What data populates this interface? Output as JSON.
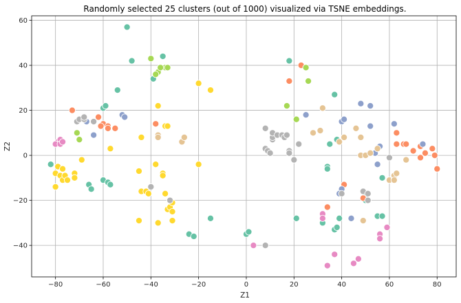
{
  "chart_data": {
    "type": "scatter",
    "title": "Randomly selected 25 clusters (out of 1000) visualized via TSNE embeddings.",
    "xlabel": "Z1",
    "ylabel": "Z2",
    "xlim": [
      -90,
      88
    ],
    "ylim": [
      -54,
      62
    ],
    "xticks": [
      -80,
      -60,
      -40,
      -20,
      0,
      20,
      40,
      60,
      80
    ],
    "yticks": [
      -40,
      -20,
      0,
      20,
      40,
      60
    ],
    "grid": true,
    "marker_edge_color": "#ffffff",
    "series": [
      {
        "color": "#66c2a5",
        "points": [
          [
            -50,
            57
          ],
          [
            -48,
            42
          ],
          [
            -35,
            44
          ],
          [
            -39,
            34
          ],
          [
            -54,
            29
          ],
          [
            -60,
            21
          ],
          [
            -59,
            22
          ],
          [
            -82,
            -4
          ],
          [
            -66,
            -13
          ],
          [
            -65,
            -15
          ],
          [
            -60,
            -11
          ],
          [
            -58,
            -12
          ],
          [
            -57,
            -13
          ],
          [
            -15,
            -28
          ],
          [
            -24,
            -35
          ],
          [
            -22,
            -36
          ],
          [
            0,
            -35
          ],
          [
            1,
            -34
          ],
          [
            18,
            42
          ],
          [
            37,
            27
          ],
          [
            35,
            5
          ],
          [
            38,
            7
          ],
          [
            34,
            -5
          ],
          [
            34,
            -6
          ],
          [
            21,
            -28
          ],
          [
            32,
            -30
          ],
          [
            39,
            -28
          ],
          [
            37,
            -33
          ],
          [
            38,
            -32
          ],
          [
            55,
            -27
          ],
          [
            57,
            -27
          ],
          [
            57,
            -10
          ],
          [
            50,
            -18
          ],
          [
            50,
            -20
          ]
        ]
      },
      {
        "color": "#fc8d62",
        "points": [
          [
            -73,
            20
          ],
          [
            -62,
            17
          ],
          [
            -60,
            14
          ],
          [
            -58,
            13
          ],
          [
            -61,
            13
          ],
          [
            -58,
            12
          ],
          [
            -55,
            12
          ],
          [
            -38,
            14
          ],
          [
            18,
            33
          ],
          [
            23,
            40
          ],
          [
            41,
            -13
          ],
          [
            34,
            -23
          ],
          [
            49,
            -19
          ],
          [
            63,
            10
          ],
          [
            63,
            5
          ],
          [
            66,
            5
          ],
          [
            67,
            5
          ],
          [
            70,
            2
          ],
          [
            73,
            4
          ],
          [
            75,
            1
          ],
          [
            78,
            3
          ],
          [
            79,
            0
          ],
          [
            73,
            -1
          ],
          [
            80,
            -6
          ]
        ]
      },
      {
        "color": "#8da0cb",
        "points": [
          [
            -67,
            15
          ],
          [
            -64,
            9
          ],
          [
            -52,
            18
          ],
          [
            -51,
            17
          ],
          [
            25,
            18
          ],
          [
            40,
            15
          ],
          [
            41,
            16
          ],
          [
            48,
            23
          ],
          [
            52,
            22
          ],
          [
            52,
            13
          ],
          [
            62,
            14
          ],
          [
            56,
            4
          ],
          [
            54,
            1
          ],
          [
            55,
            -4
          ],
          [
            40,
            -15
          ],
          [
            39,
            -17
          ],
          [
            44,
            -28
          ],
          [
            74,
            5
          ]
        ]
      },
      {
        "color": "#e78ac3",
        "points": [
          [
            -79,
            6
          ],
          [
            -80,
            5
          ],
          [
            -78,
            7
          ],
          [
            -78,
            5
          ],
          [
            -77,
            6
          ],
          [
            3,
            -40
          ],
          [
            32,
            -26
          ],
          [
            32,
            -28
          ],
          [
            34,
            -49
          ],
          [
            37,
            -44
          ],
          [
            45,
            -48
          ],
          [
            47,
            -46
          ],
          [
            56,
            -35
          ],
          [
            56,
            -37
          ],
          [
            59,
            -32
          ]
        ]
      },
      {
        "color": "#a6d854",
        "points": [
          [
            -71,
            10
          ],
          [
            -70,
            7
          ],
          [
            -40,
            43
          ],
          [
            -37,
            37
          ],
          [
            -38,
            36
          ],
          [
            -34,
            39
          ],
          [
            -36,
            39
          ],
          [
            -33,
            39
          ],
          [
            25,
            39
          ],
          [
            26,
            33
          ],
          [
            17,
            22
          ],
          [
            21,
            16
          ]
        ]
      },
      {
        "color": "#ffd92f",
        "points": [
          [
            -80,
            -8
          ],
          [
            -80,
            -14
          ],
          [
            -79,
            -5
          ],
          [
            -78,
            -9
          ],
          [
            -77,
            -6
          ],
          [
            -77,
            -11
          ],
          [
            -76,
            -9
          ],
          [
            -75,
            -11
          ],
          [
            -72,
            -8
          ],
          [
            -72,
            -10
          ],
          [
            -69,
            -2
          ],
          [
            -57,
            3
          ],
          [
            -44,
            8
          ],
          [
            -45,
            -7
          ],
          [
            -44,
            -16
          ],
          [
            -42,
            -16
          ],
          [
            -41,
            -17
          ],
          [
            -38,
            -4
          ],
          [
            -37,
            22
          ],
          [
            -35,
            -8
          ],
          [
            -35,
            -9
          ],
          [
            -34,
            13
          ],
          [
            -33,
            13
          ],
          [
            -34,
            -17
          ],
          [
            -33,
            -24
          ],
          [
            -32,
            -23
          ],
          [
            -31,
            -21
          ],
          [
            -31,
            -25
          ],
          [
            -31,
            -29
          ],
          [
            -37,
            -30
          ],
          [
            -45,
            -29
          ],
          [
            -20,
            32
          ],
          [
            -20,
            -4
          ],
          [
            -15,
            29
          ]
        ]
      },
      {
        "color": "#e5c494",
        "points": [
          [
            -37,
            9
          ],
          [
            -37,
            8
          ],
          [
            -27,
            6
          ],
          [
            -26,
            8
          ],
          [
            28,
            10
          ],
          [
            31,
            11
          ],
          [
            32,
            21
          ],
          [
            39,
            6
          ],
          [
            41,
            8
          ],
          [
            46,
            12
          ],
          [
            48,
            8
          ],
          [
            48,
            0
          ],
          [
            50,
            0
          ],
          [
            52,
            1
          ],
          [
            55,
            3
          ],
          [
            60,
            -11
          ],
          [
            62,
            -10
          ],
          [
            62,
            -9
          ],
          [
            63,
            -8
          ],
          [
            62,
            -11
          ],
          [
            67,
            -2
          ],
          [
            49,
            -29
          ]
        ]
      },
      {
        "color": "#b3b3b3",
        "points": [
          [
            -71,
            15
          ],
          [
            -70,
            16
          ],
          [
            -68,
            16
          ],
          [
            -68,
            17
          ],
          [
            -64,
            15
          ],
          [
            -40,
            -14
          ],
          [
            -32,
            -20
          ],
          [
            8,
            12
          ],
          [
            8,
            3
          ],
          [
            9,
            2
          ],
          [
            10,
            1
          ],
          [
            11,
            7
          ],
          [
            11,
            8
          ],
          [
            11,
            10
          ],
          [
            13,
            9
          ],
          [
            15,
            9
          ],
          [
            16,
            8
          ],
          [
            17,
            9
          ],
          [
            18,
            2
          ],
          [
            18,
            1
          ],
          [
            20,
            -2
          ],
          [
            22,
            5
          ],
          [
            8,
            -40
          ],
          [
            40,
            -17
          ],
          [
            49,
            -16
          ],
          [
            51,
            -17
          ],
          [
            51,
            -20
          ],
          [
            60,
            -1
          ]
        ]
      }
    ]
  }
}
